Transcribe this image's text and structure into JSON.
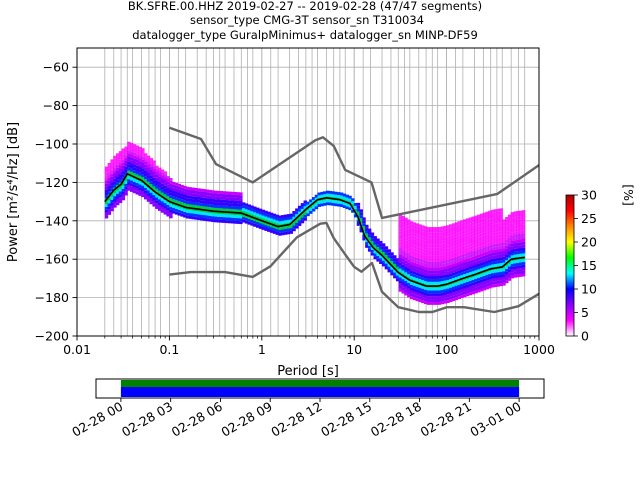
{
  "chart_data": {
    "type": "heatmap",
    "title_lines": [
      "BK.SFRE.00.HHZ   2019-02-27 -- 2019-02-28  (47/47 segments)",
      "sensor_type CMG-3T sensor_sn T310034",
      "datalogger_type GuralpMinimus+ datalogger_sn MINP-DF59"
    ],
    "xlabel": "Period [s]",
    "ylabel": "Power [m²/s⁴/Hz] [dB]",
    "x_scale": "log",
    "xlim": [
      0.01,
      1000
    ],
    "ylim": [
      -200,
      -50
    ],
    "x_ticks": [
      {
        "value": 0.01,
        "label": "0.01"
      },
      {
        "value": 0.1,
        "label": "0.1"
      },
      {
        "value": 1,
        "label": "1"
      },
      {
        "value": 10,
        "label": "10"
      },
      {
        "value": 100,
        "label": "100"
      },
      {
        "value": 1000,
        "label": "1000"
      }
    ],
    "y_ticks": [
      -60,
      -80,
      -100,
      -120,
      -140,
      -160,
      -180,
      -200
    ],
    "y_tick_labels": [
      "−60",
      "−80",
      "−100",
      "−120",
      "−140",
      "−160",
      "−180",
      "−200"
    ],
    "grid": true,
    "grid_period_lines": [
      0.02,
      0.025,
      0.03,
      0.035,
      0.04,
      0.05,
      0.06,
      0.07,
      0.08,
      0.1,
      0.125,
      0.15,
      0.2,
      0.25,
      0.3,
      0.35,
      0.4,
      0.5,
      0.6,
      0.7,
      0.8,
      1,
      1.25,
      1.5,
      2,
      2.5,
      3,
      3.5,
      4,
      5,
      6,
      7,
      8,
      10,
      12.5,
      15,
      20,
      25,
      30,
      35,
      40,
      50,
      60,
      70,
      80,
      100,
      125,
      150,
      200,
      250,
      300,
      350,
      400,
      500,
      600,
      700
    ],
    "colorbar": {
      "label": "[%]",
      "range": [
        0,
        30
      ],
      "ticks": [
        0,
        5,
        10,
        15,
        20,
        25,
        30
      ],
      "stops": [
        "#ffffff",
        "#ff00ff",
        "#8800ff",
        "#0000ff",
        "#00ffff",
        "#00ff00",
        "#ffff00",
        "#ff8800",
        "#ff0000",
        "#aa0000"
      ]
    },
    "noise_models": [
      {
        "curve": "upper",
        "color": "#666666",
        "points": [
          [
            0.1,
            -91.5
          ],
          [
            0.22,
            -97.4
          ],
          [
            0.32,
            -110.5
          ],
          [
            0.8,
            -120
          ],
          [
            3.8,
            -98
          ],
          [
            4.6,
            -96.5
          ],
          [
            6,
            -101
          ],
          [
            8,
            -113.5
          ],
          [
            15.4,
            -120
          ],
          [
            20,
            -138.5
          ],
          [
            354.8,
            -126
          ],
          [
            1000,
            -111
          ]
        ]
      },
      {
        "curve": "lower",
        "color": "#666666",
        "points": [
          [
            0.1,
            -168
          ],
          [
            0.17,
            -166.7
          ],
          [
            0.4,
            -166.7
          ],
          [
            0.8,
            -169.2
          ],
          [
            1.24,
            -163.7
          ],
          [
            2.4,
            -148.6
          ],
          [
            4.3,
            -141.5
          ],
          [
            5,
            -141.1
          ],
          [
            6,
            -149
          ],
          [
            8,
            -157.5
          ],
          [
            10,
            -164
          ],
          [
            12,
            -166.5
          ],
          [
            15.6,
            -162
          ],
          [
            20,
            -177
          ],
          [
            30,
            -185
          ],
          [
            50,
            -187.5
          ],
          [
            70,
            -187.5
          ],
          [
            101,
            -185
          ],
          [
            154,
            -185
          ],
          [
            328,
            -187.5
          ],
          [
            600,
            -184.5
          ],
          [
            1000,
            -178
          ]
        ]
      }
    ],
    "median_psd": {
      "color": "#000000",
      "points": [
        [
          0.02,
          -130
        ],
        [
          0.025,
          -124
        ],
        [
          0.03,
          -121
        ],
        [
          0.035,
          -115.5
        ],
        [
          0.05,
          -119
        ],
        [
          0.07,
          -125
        ],
        [
          0.1,
          -130
        ],
        [
          0.15,
          -133
        ],
        [
          0.3,
          -135
        ],
        [
          0.6,
          -136
        ],
        [
          1,
          -140
        ],
        [
          1.5,
          -143
        ],
        [
          2,
          -142
        ],
        [
          3,
          -134
        ],
        [
          4,
          -129
        ],
        [
          5,
          -128
        ],
        [
          7,
          -129
        ],
        [
          9,
          -131
        ],
        [
          11,
          -138
        ],
        [
          13,
          -148
        ],
        [
          16,
          -154
        ],
        [
          20,
          -158
        ],
        [
          25,
          -163
        ],
        [
          30,
          -167
        ],
        [
          40,
          -171
        ],
        [
          60,
          -174
        ],
        [
          80,
          -174
        ],
        [
          100,
          -173
        ],
        [
          150,
          -170
        ],
        [
          200,
          -168
        ],
        [
          300,
          -165
        ],
        [
          400,
          -164
        ],
        [
          500,
          -160
        ],
        [
          700,
          -159
        ]
      ]
    },
    "heatmap_density": {
      "period_range": [
        0.02,
        700
      ],
      "values_pct": "shown as colour: magenta/white spread above and below median (mostly <5%), blue-cyan-green core near median (up to ~20%)"
    },
    "time_bar": {
      "start_tick_label": "02-28 00",
      "tick_labels": [
        "02-28 00",
        "02-28 03",
        "02-28 06",
        "02-28 09",
        "02-28 12",
        "02-28 15",
        "02-28 18",
        "02-28 21",
        "03-01 00"
      ],
      "coverage_hours": [
        0,
        24
      ],
      "axis_range_hours": [
        -1.5,
        25.5
      ],
      "coverage_color": "#0000ff",
      "data_color": "#008000"
    }
  }
}
